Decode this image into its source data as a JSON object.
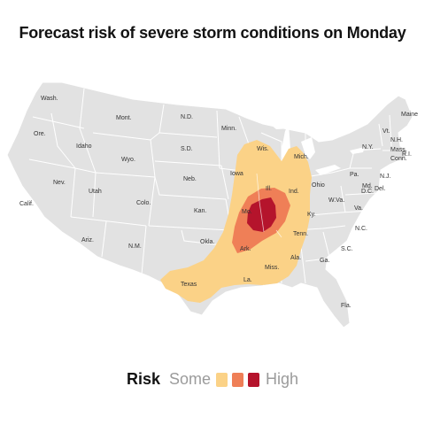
{
  "title": "Forecast risk of severe storm conditions on Monday",
  "colors": {
    "land": "#e2e2e2",
    "border": "#ffffff",
    "lake": "#ffffff",
    "some": "#fbd287",
    "moderate": "#ef7f57",
    "high": "#b5142c"
  },
  "states": {
    "wash": "Wash.",
    "ore": "Ore.",
    "calif": "Calif.",
    "idaho": "Idaho",
    "nev": "Nev.",
    "mont": "Mont.",
    "wyo": "Wyo.",
    "utah": "Utah",
    "ariz": "Ariz.",
    "colo": "Colo.",
    "nm": "N.M.",
    "nd": "N.D.",
    "sd": "S.D.",
    "neb": "Neb.",
    "kan": "Kan.",
    "okla": "Okla.",
    "texas": "Texas",
    "minn": "Minn.",
    "iowa": "Iowa",
    "mo": "Mo.",
    "ark": "Ark.",
    "la": "La.",
    "wis": "Wis.",
    "ill": "Ill.",
    "miss": "Miss.",
    "mich": "Mich.",
    "ind": "Ind.",
    "ohio": "Ohio",
    "ky": "Ky.",
    "tenn": "Tenn.",
    "ala": "Ala.",
    "ga": "Ga.",
    "fla": "Fla.",
    "sc": "S.C.",
    "nc": "N.C.",
    "va": "Va.",
    "wva": "W.Va.",
    "pa": "Pa.",
    "ny": "N.Y.",
    "md": "Md.",
    "dc": "D.C.",
    "del": "Del.",
    "nj": "N.J.",
    "conn": "Conn.",
    "ri": "R.I.",
    "mass": "Mass.",
    "nh": "N.H.",
    "vt": "Vt.",
    "maine": "Maine"
  },
  "legend": {
    "risk": "Risk",
    "some": "Some",
    "high": "High"
  }
}
